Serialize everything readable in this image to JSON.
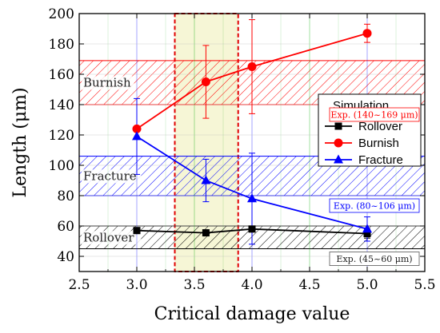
{
  "chart_data": {
    "type": "line",
    "xlabel": "Critical damage value",
    "ylabel": "Length (μm)",
    "xlim": [
      2.5,
      5.5
    ],
    "ylim": [
      30,
      200
    ],
    "xticks": [
      "2.5",
      "3.0",
      "3.5",
      "4.0",
      "4.5",
      "5.0",
      "5.5"
    ],
    "yticks": [
      "40",
      "60",
      "80",
      "100",
      "120",
      "140",
      "160",
      "180",
      "200"
    ],
    "grid": true,
    "legend": {
      "title": "Simulation",
      "placement": "right",
      "entries": [
        "Rollover",
        "Burnish",
        "Fracture"
      ]
    },
    "series": [
      {
        "name": "Rollover",
        "color": "#000000",
        "marker": "square",
        "x": [
          3.0,
          3.6,
          4.0,
          5.0
        ],
        "y": [
          57,
          55.5,
          58,
          55
        ],
        "err": [
          0,
          0,
          0,
          3
        ]
      },
      {
        "name": "Burnish",
        "color": "#ff0000",
        "marker": "circle",
        "x": [
          3.0,
          3.6,
          4.0,
          5.0
        ],
        "y": [
          124,
          155,
          165,
          187
        ],
        "err": [
          0,
          24,
          31,
          6
        ]
      },
      {
        "name": "Fracture",
        "color": "#0000ff",
        "marker": "triangle",
        "x": [
          3.0,
          3.6,
          4.0,
          5.0
        ],
        "y": [
          119,
          90,
          78,
          58
        ],
        "err": [
          25,
          14,
          30,
          8
        ]
      }
    ],
    "bands": [
      {
        "label": "Burnish",
        "exp_label": "Exp. (140~169 μm)",
        "ymin": 140,
        "ymax": 169,
        "color": "#ff0000"
      },
      {
        "label": "Fracture",
        "exp_label": "Exp. (80~106 μm)",
        "ymin": 80,
        "ymax": 106,
        "color": "#0000ff"
      },
      {
        "label": "Rollover",
        "exp_label": "Exp. (45~60 μm)",
        "ymin": 45,
        "ymax": 60,
        "color": "#000000"
      }
    ],
    "highlight": {
      "xmin": 3.33,
      "xmax": 3.88,
      "fill": "#f6f6d6",
      "border": "#e00000"
    }
  }
}
